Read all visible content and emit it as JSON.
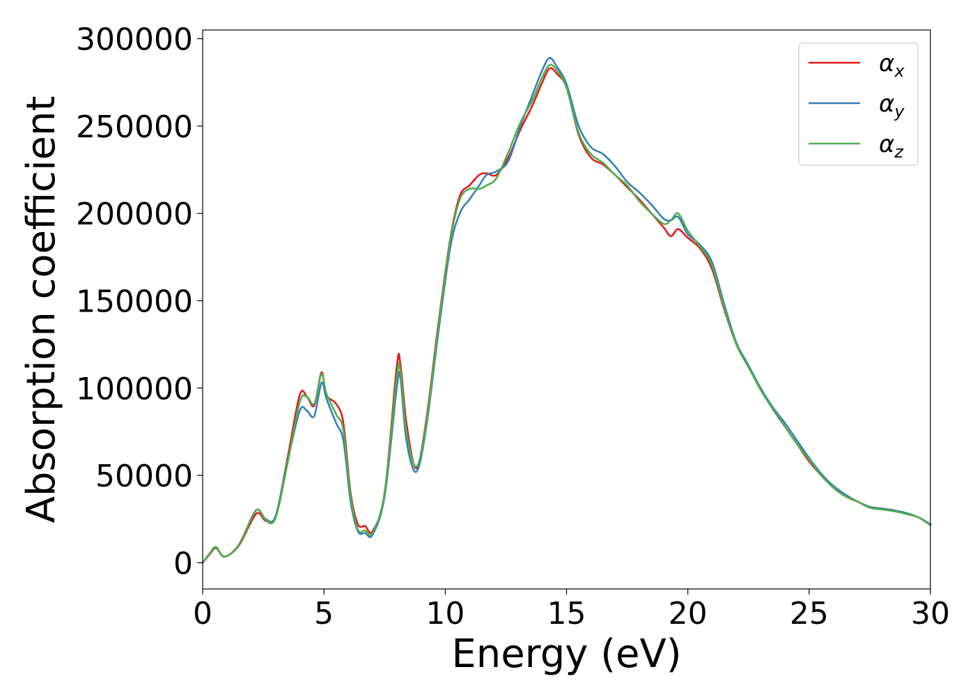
{
  "chart_data": {
    "type": "line",
    "title": "",
    "xlabel": "Energy (eV)",
    "ylabel": "Absorption coefficient",
    "xlim": [
      0,
      30
    ],
    "ylim": [
      -15000,
      305000
    ],
    "xticks": [
      0,
      5,
      10,
      15,
      20,
      25,
      30
    ],
    "xtick_labels": [
      "0",
      "5",
      "10",
      "15",
      "20",
      "25",
      "30"
    ],
    "yticks": [
      0,
      50000,
      100000,
      150000,
      200000,
      250000,
      300000
    ],
    "ytick_labels": [
      "0",
      "50000",
      "100000",
      "150000",
      "200000",
      "250000",
      "300000"
    ],
    "grid": false,
    "legend_position": "top-right",
    "series": [
      {
        "name": "α_x",
        "label_main": "α",
        "label_sub": "x",
        "color": "#e41a1c",
        "x": [
          0,
          0.3,
          0.55,
          0.9,
          1.5,
          2.2,
          2.6,
          3.0,
          3.5,
          4.0,
          4.3,
          4.6,
          4.9,
          5.1,
          5.5,
          5.8,
          6.1,
          6.4,
          6.7,
          7.0,
          7.5,
          8.0,
          8.15,
          8.4,
          8.8,
          9.2,
          9.7,
          10.2,
          10.6,
          11.0,
          11.4,
          11.7,
          12.1,
          12.6,
          13.1,
          13.6,
          14.0,
          14.3,
          14.6,
          15.0,
          15.5,
          16.0,
          16.5,
          17.0,
          17.5,
          18.0,
          18.5,
          19.0,
          19.3,
          19.6,
          20.0,
          20.5,
          21.0,
          21.5,
          22.0,
          22.5,
          23.0,
          23.5,
          24.0,
          24.5,
          25.0,
          25.5,
          26.0,
          26.5,
          27.0,
          27.5,
          28.0,
          28.5,
          29.0,
          29.5,
          30.0
        ],
        "values": [
          0,
          5000,
          8500,
          3500,
          10000,
          28000,
          24000,
          26000,
          60000,
          96000,
          95000,
          90000,
          109000,
          96000,
          91000,
          80000,
          40000,
          22000,
          21000,
          18000,
          40000,
          112000,
          114000,
          80000,
          54000,
          80000,
          135000,
          185000,
          210000,
          216000,
          222000,
          223000,
          222000,
          232000,
          248000,
          262000,
          275000,
          283000,
          280000,
          272000,
          245000,
          232000,
          228000,
          222000,
          215000,
          208000,
          200000,
          192000,
          187000,
          191000,
          186000,
          180000,
          168000,
          145000,
          125000,
          112000,
          100000,
          88000,
          78000,
          68000,
          58000,
          50000,
          43000,
          38000,
          35000,
          32000,
          31000,
          30000,
          28000,
          26000,
          22000
        ]
      },
      {
        "name": "α_y",
        "label_main": "α",
        "label_sub": "y",
        "color": "#377eb8",
        "x": [
          0,
          0.3,
          0.55,
          0.9,
          1.5,
          2.2,
          2.6,
          3.0,
          3.5,
          4.0,
          4.3,
          4.6,
          4.9,
          5.1,
          5.5,
          5.8,
          6.1,
          6.4,
          6.7,
          7.0,
          7.5,
          8.0,
          8.15,
          8.4,
          8.8,
          9.2,
          9.7,
          10.2,
          10.6,
          11.0,
          11.4,
          11.7,
          12.1,
          12.6,
          13.1,
          13.6,
          14.0,
          14.3,
          14.6,
          15.0,
          15.5,
          16.0,
          16.5,
          17.0,
          17.5,
          18.0,
          18.5,
          19.0,
          19.3,
          19.6,
          20.0,
          20.5,
          21.0,
          21.5,
          22.0,
          22.5,
          23.0,
          23.5,
          24.0,
          24.5,
          25.0,
          25.5,
          26.0,
          26.5,
          27.0,
          27.5,
          28.0,
          28.5,
          29.0,
          29.5,
          30.0
        ],
        "values": [
          0,
          5500,
          9000,
          3500,
          10500,
          30000,
          25000,
          26500,
          58000,
          87000,
          87000,
          84000,
          103000,
          94000,
          80000,
          70000,
          35000,
          18000,
          17000,
          16000,
          38000,
          100000,
          106000,
          70000,
          52000,
          76000,
          130000,
          180000,
          200000,
          208000,
          216000,
          222000,
          224000,
          230000,
          250000,
          268000,
          282000,
          289000,
          284000,
          274000,
          250000,
          238000,
          234000,
          227000,
          218000,
          212000,
          205000,
          197000,
          196000,
          198000,
          188000,
          182000,
          172000,
          148000,
          126000,
          113000,
          100000,
          89000,
          80000,
          70000,
          60000,
          51000,
          44000,
          39000,
          35000,
          32000,
          31000,
          30000,
          28500,
          26000,
          22000
        ]
      },
      {
        "name": "α_z",
        "label_main": "α",
        "label_sub": "z",
        "color": "#4daf4a",
        "x": [
          0,
          0.3,
          0.55,
          0.9,
          1.5,
          2.2,
          2.6,
          3.0,
          3.5,
          4.0,
          4.3,
          4.6,
          4.9,
          5.1,
          5.5,
          5.8,
          6.1,
          6.4,
          6.7,
          7.0,
          7.5,
          8.0,
          8.15,
          8.4,
          8.8,
          9.2,
          9.7,
          10.2,
          10.6,
          11.0,
          11.4,
          11.7,
          12.1,
          12.6,
          13.1,
          13.6,
          14.0,
          14.3,
          14.6,
          15.0,
          15.5,
          16.0,
          16.5,
          17.0,
          17.5,
          18.0,
          18.5,
          19.0,
          19.3,
          19.6,
          20.0,
          20.5,
          21.0,
          21.5,
          22.0,
          22.5,
          23.0,
          23.5,
          24.0,
          24.5,
          25.0,
          25.5,
          26.0,
          26.5,
          27.0,
          27.5,
          28.0,
          28.5,
          29.0,
          29.5,
          30.0
        ],
        "values": [
          0,
          5500,
          9000,
          3500,
          10500,
          30000,
          24500,
          25500,
          57000,
          92000,
          95000,
          91000,
          108000,
          97000,
          85000,
          76000,
          38000,
          19000,
          18500,
          17000,
          40000,
          106000,
          110000,
          75000,
          55000,
          78000,
          133000,
          184000,
          208000,
          214000,
          214000,
          216000,
          220000,
          235000,
          252000,
          265000,
          278000,
          285000,
          282000,
          272000,
          246000,
          234000,
          229000,
          222000,
          216000,
          207000,
          200000,
          194000,
          196000,
          200000,
          190000,
          181000,
          170000,
          146000,
          125000,
          112000,
          99000,
          88000,
          78000,
          68000,
          59000,
          50000,
          43000,
          38000,
          35000,
          31500,
          30500,
          29500,
          28000,
          26000,
          21500
        ]
      }
    ]
  }
}
